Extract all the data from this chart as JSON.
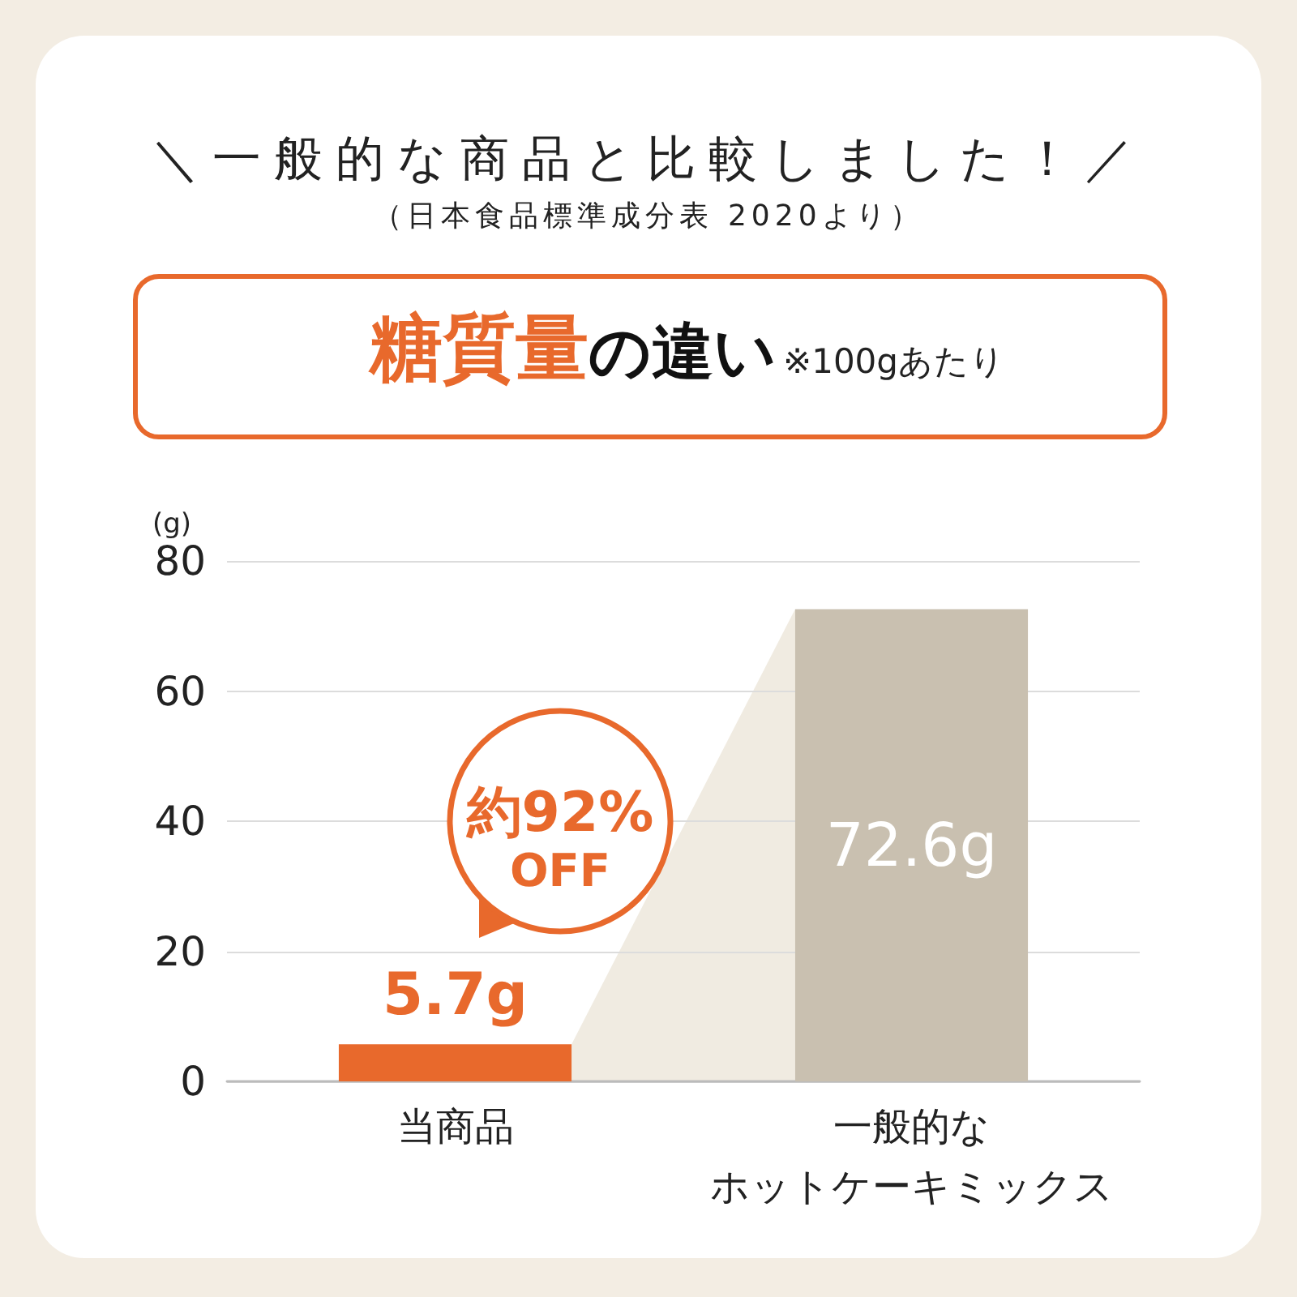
{
  "chart_data": {
    "type": "bar",
    "title": "＼一般的な商品と比較しました！／",
    "subtitle": "（日本食品標準成分表 2020より）",
    "ylabel": "(g)",
    "annotations": [
      "糖質量",
      "の違い",
      "※100gあたり",
      "約92%\nOFF"
    ],
    "categories": [
      "当商品",
      "一般的なホットケーキミックス"
    ],
    "values": [
      5.7,
      72.6
    ],
    "colors": [
      "#e8692c",
      "#c9c0b0"
    ],
    "value_labels": [
      "5.7g",
      "72.6g"
    ],
    "ylim": [
      0,
      80
    ],
    "yticks": [
      0,
      20,
      40,
      60,
      80
    ],
    "grid": "y"
  }
}
